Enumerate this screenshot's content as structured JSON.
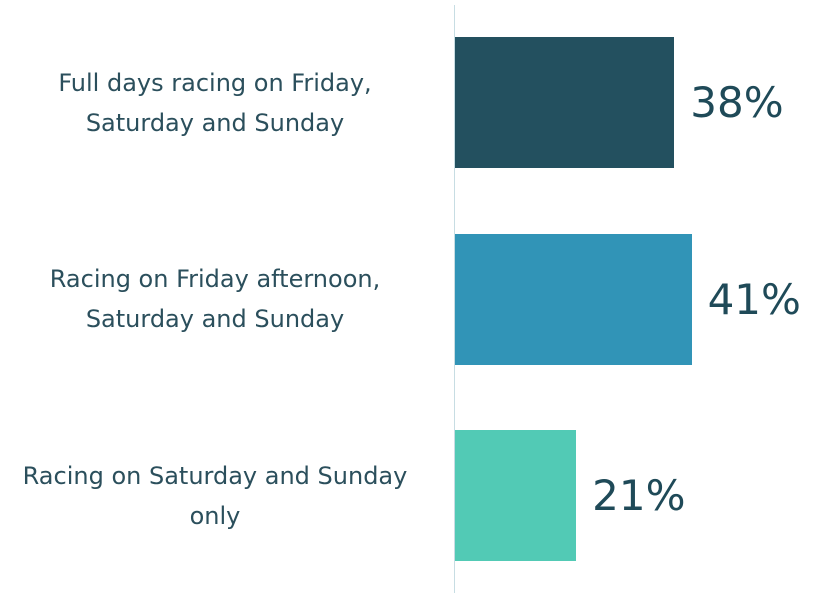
{
  "chart_data": {
    "type": "bar",
    "orientation": "horizontal",
    "categories": [
      "Full days racing on Friday, Saturday and Sunday",
      "Racing on Friday afternoon, Saturday and Sunday",
      "Racing on Saturday and Sunday only"
    ],
    "values": [
      38,
      41,
      21
    ],
    "value_labels": [
      "38%",
      "41%",
      "21%"
    ],
    "colors": [
      "#23505f",
      "#3194b7",
      "#52cab5"
    ]
  }
}
